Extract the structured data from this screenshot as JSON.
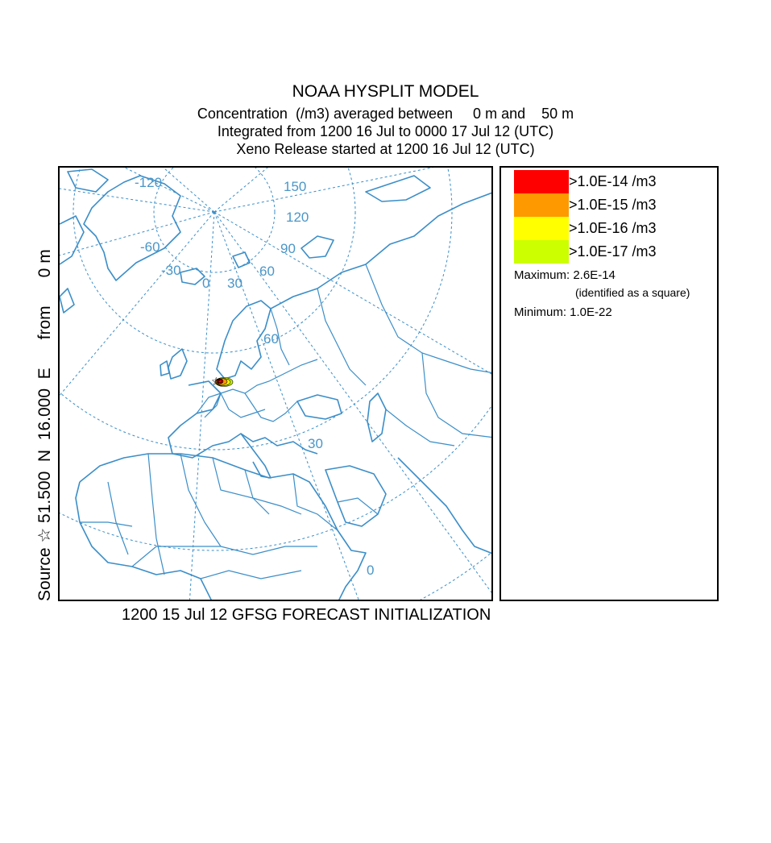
{
  "header": {
    "title": "NOAA HYSPLIT MODEL",
    "line2": "Concentration  (/m3) averaged between     0 m and    50 m",
    "line3": "Integrated from 1200 16 Jul to 0000 17 Jul 12 (UTC)",
    "line4": "Xeno Release started at 1200 16 Jul 12 (UTC)"
  },
  "source_label": "Source ☆ 51.500  N  16.000  E      from      0 m",
  "footer": "1200 15 Jul 12 GFSG FORECAST INITIALIZATION",
  "map": {
    "grid_labels": [
      "-120",
      "150",
      "120",
      "-60",
      "90",
      "-30",
      "60",
      "0",
      "30",
      "60",
      "30",
      "0"
    ],
    "source": {
      "lat": 51.5,
      "lon": 16.0
    }
  },
  "legend": {
    "items": [
      {
        "label": ">1.0E-14 /m3",
        "color": "#ff0000"
      },
      {
        "label": ">1.0E-15 /m3",
        "color": "#ff9900"
      },
      {
        "label": ">1.0E-16 /m3",
        "color": "#ffff00"
      },
      {
        "label": ">1.0E-17 /m3",
        "color": "#ccff00"
      }
    ],
    "maximum": "Maximum: 2.6E-14",
    "maximum_note": "(identified as a square)",
    "minimum": "Minimum: 1.0E-22"
  }
}
